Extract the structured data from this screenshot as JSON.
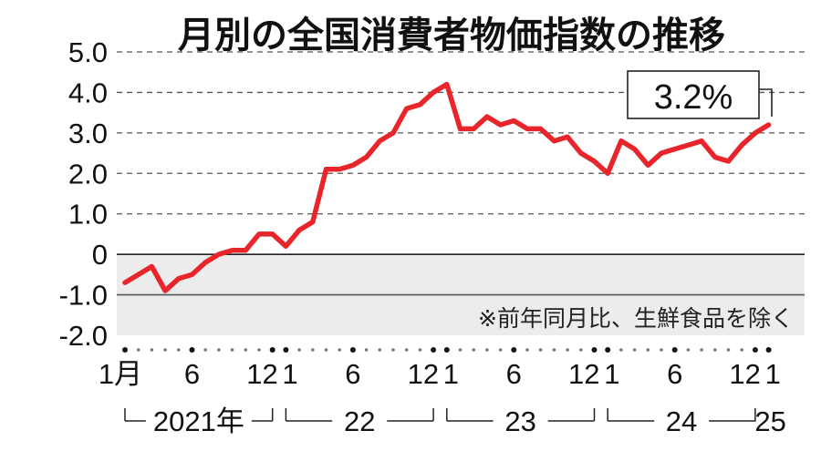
{
  "chart_data": {
    "type": "line",
    "title": "月別の全国消費者物価指数の推移",
    "note": "※前年同月比、生鮮食品を除く",
    "callout": "3.2%",
    "line_color": "#e8252b",
    "ylim": [
      -2.0,
      5.0
    ],
    "y_ticks": [
      "5.0",
      "4.0",
      "3.0",
      "2.0",
      "1.0",
      "0",
      "-1.0",
      "-2.0"
    ],
    "x_tick_labels": [
      "1月",
      "6",
      "12",
      "1",
      "6",
      "12",
      "1",
      "6",
      "12",
      "1",
      "6",
      "12",
      "1"
    ],
    "year_labels": [
      "2021年",
      "22",
      "23",
      "24",
      "25"
    ],
    "series": [
      {
        "values": [
          -0.7,
          -0.5,
          -0.3,
          -0.9,
          -0.6,
          -0.5,
          -0.2,
          0.0,
          0.1,
          0.1,
          0.5,
          0.5,
          0.2,
          0.6,
          0.8,
          2.1,
          2.1,
          2.2,
          2.4,
          2.8,
          3.0,
          3.6,
          3.7,
          4.0,
          4.2,
          3.1,
          3.1,
          3.4,
          3.2,
          3.3,
          3.1,
          3.1,
          2.8,
          2.9,
          2.5,
          2.3,
          2.0,
          2.8,
          2.6,
          2.2,
          2.5,
          2.6,
          2.7,
          2.8,
          2.4,
          2.3,
          2.7,
          3.0,
          3.2
        ]
      }
    ]
  }
}
